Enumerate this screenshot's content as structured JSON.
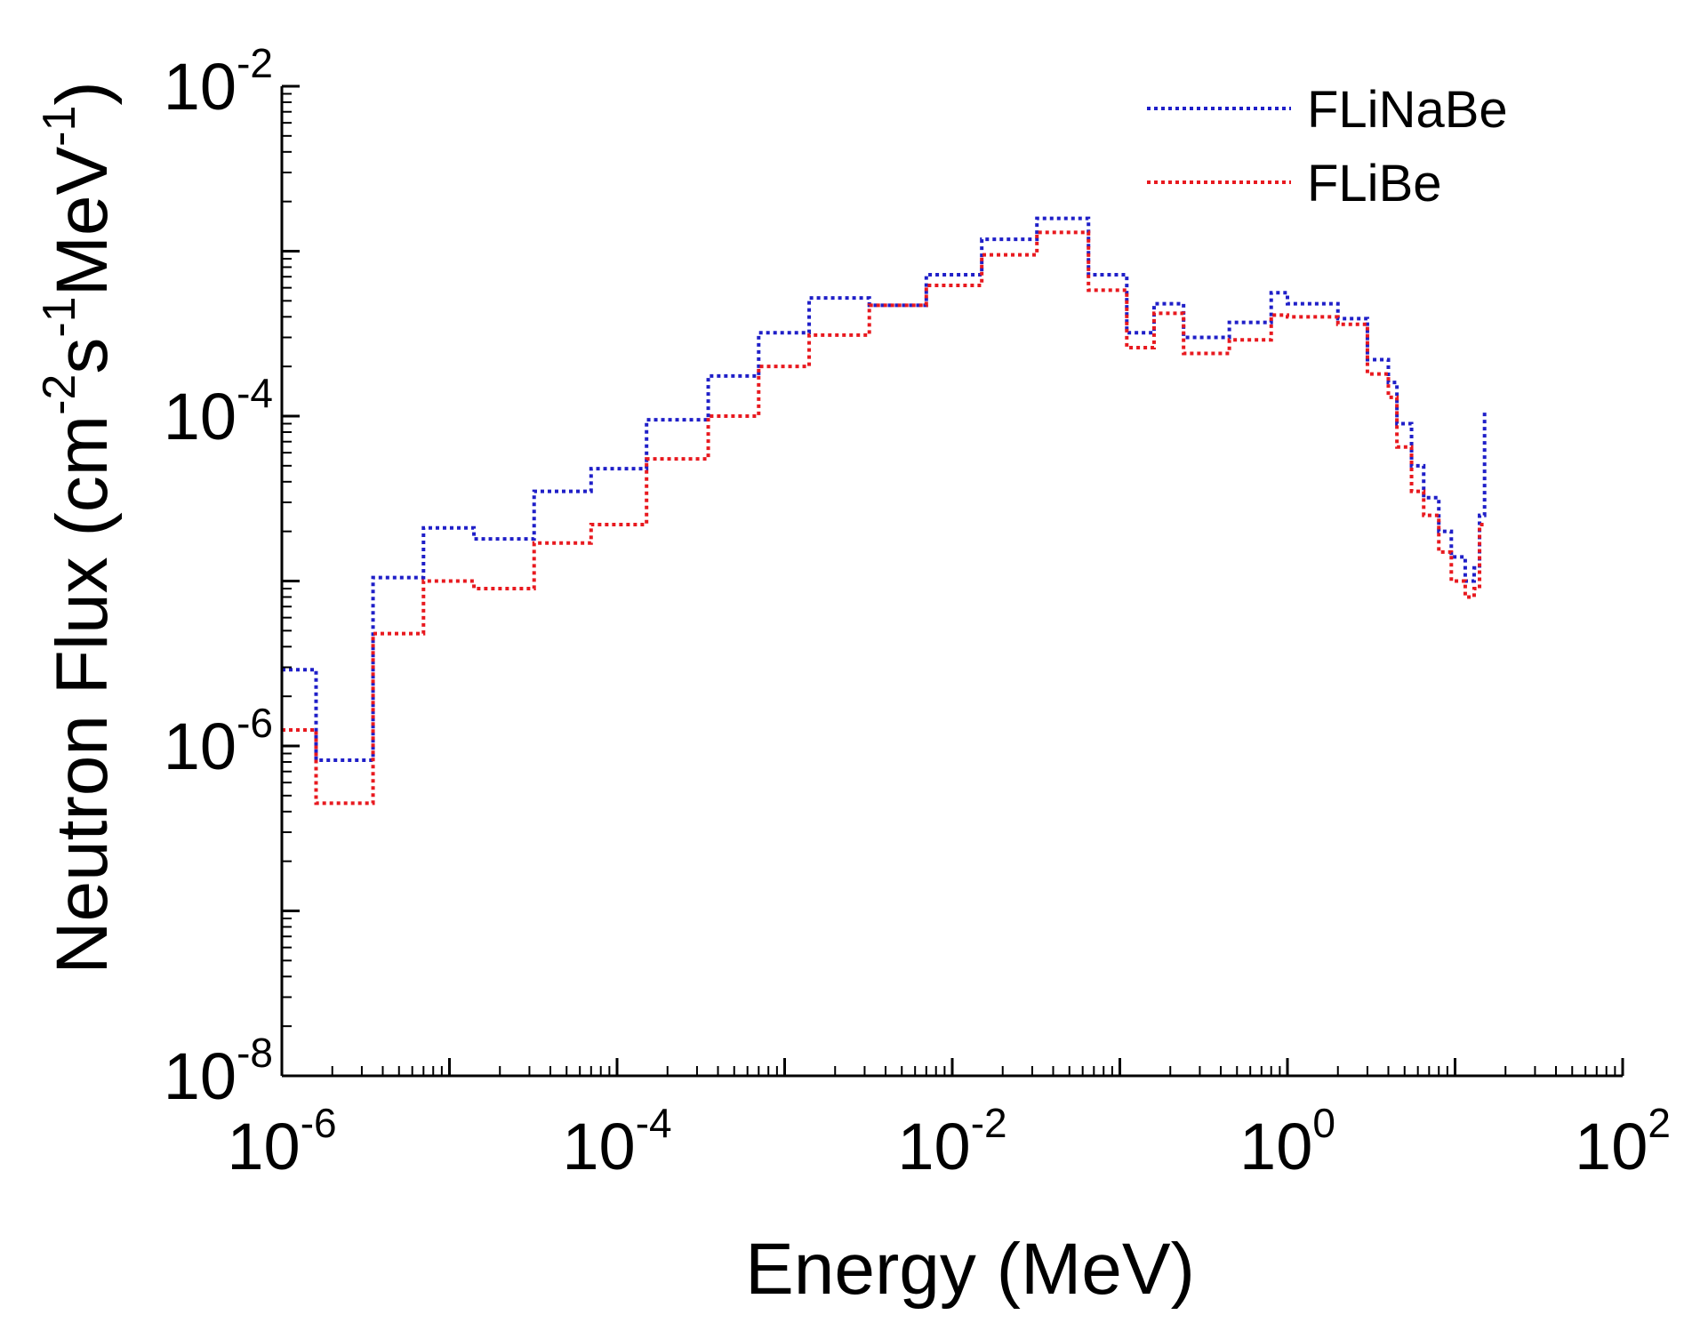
{
  "chart_data": {
    "type": "line",
    "step": true,
    "xscale": "log",
    "yscale": "log",
    "xlabel": "Energy (MeV)",
    "ylabel": "Neutron Flux (cm-2s-1MeV-1)",
    "ylabel_parts": [
      {
        "t": "Neutron Flux (cm",
        "sup": false
      },
      {
        "t": "-2",
        "sup": true
      },
      {
        "t": "s",
        "sup": false
      },
      {
        "t": "-1",
        "sup": true
      },
      {
        "t": "MeV",
        "sup": false
      },
      {
        "t": "-1",
        "sup": true
      },
      {
        "t": ")",
        "sup": false
      }
    ],
    "xlim": [
      1e-06,
      100
    ],
    "ylim": [
      1e-08,
      0.01
    ],
    "xticks": [
      {
        "value": 1e-06,
        "base": "10",
        "exp": "-6"
      },
      {
        "value": 0.0001,
        "base": "10",
        "exp": "-4"
      },
      {
        "value": 0.01,
        "base": "10",
        "exp": "-2"
      },
      {
        "value": 1,
        "base": "10",
        "exp": "0"
      },
      {
        "value": 100,
        "base": "10",
        "exp": "2"
      }
    ],
    "yticks": [
      {
        "value": 1e-08,
        "base": "10",
        "exp": "-8"
      },
      {
        "value": 1e-06,
        "base": "10",
        "exp": "-6"
      },
      {
        "value": 0.0001,
        "base": "10",
        "exp": "-4"
      },
      {
        "value": 0.01,
        "base": "10",
        "exp": "-2"
      }
    ],
    "legend_position": "top-right",
    "series": [
      {
        "name": "FLiNaBe",
        "color": "#1f1fc8",
        "x": [
          1e-06,
          1.6e-06,
          3.5e-06,
          7e-06,
          1.4e-05,
          3.2e-05,
          7e-05,
          0.00015,
          0.00035,
          0.0007,
          0.0014,
          0.0032,
          0.007,
          0.015,
          0.032,
          0.065,
          0.11,
          0.16,
          0.24,
          0.45,
          0.8,
          1.0,
          2.0,
          3.0,
          4.0,
          4.5,
          5.5,
          6.5,
          8.0,
          9.5,
          11.5,
          13.0,
          14.0,
          15.0
        ],
        "y": [
          2.9e-06,
          8.2e-07,
          1.05e-05,
          2.1e-05,
          1.8e-05,
          3.5e-05,
          4.8e-05,
          9.5e-05,
          0.000175,
          0.00032,
          0.00052,
          0.00047,
          0.00072,
          0.00118,
          0.00158,
          0.00072,
          0.00032,
          0.00048,
          0.0003,
          0.00037,
          0.00056,
          0.00048,
          0.00039,
          0.00022,
          0.00016,
          9e-05,
          5e-05,
          3.2e-05,
          2e-05,
          1.4e-05,
          1e-05,
          1.2e-05,
          2.5e-05,
          0.000105
        ]
      },
      {
        "name": "FLiBe",
        "color": "#e8191f",
        "x": [
          1e-06,
          1.6e-06,
          3.5e-06,
          7e-06,
          1.4e-05,
          3.2e-05,
          7e-05,
          0.00015,
          0.00035,
          0.0007,
          0.0014,
          0.0032,
          0.007,
          0.015,
          0.032,
          0.065,
          0.11,
          0.16,
          0.24,
          0.45,
          0.8,
          1.0,
          2.0,
          3.0,
          4.0,
          4.5,
          5.5,
          6.5,
          8.0,
          9.5,
          11.5,
          13.0,
          14.0,
          15.0
        ],
        "y": [
          1.25e-06,
          4.5e-07,
          4.8e-06,
          1e-05,
          9e-06,
          1.7e-05,
          2.2e-05,
          5.5e-05,
          0.0001,
          0.0002,
          0.00031,
          0.00047,
          0.00062,
          0.00095,
          0.0013,
          0.00058,
          0.00026,
          0.00042,
          0.00024,
          0.00029,
          0.00041,
          0.0004,
          0.00036,
          0.00018,
          0.00013,
          6.5e-05,
          3.5e-05,
          2.5e-05,
          1.5e-05,
          1e-05,
          8e-06,
          9e-06,
          2.2e-05,
          2.2e-05
        ]
      }
    ]
  }
}
